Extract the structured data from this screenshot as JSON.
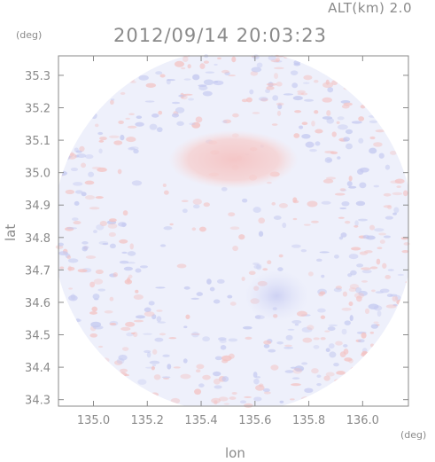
{
  "header": {
    "altitude": "ALT(km) 2.0",
    "timestamp": "2012/09/14 20:03:23"
  },
  "colors": {
    "positive": "#f4c4c4",
    "negative": "#c8ccf2",
    "neutral": "#eef0fb",
    "axis": "#8a8a8a"
  },
  "chart_data": {
    "type": "heatmap",
    "title": "2012/09/14 20:03:23",
    "subtitle": "ALT(km) 2.0",
    "xlabel": "lon",
    "ylabel": "lat",
    "xunit": "(deg)",
    "yunit": "(deg)",
    "xlim": [
      134.87,
      136.17
    ],
    "ylim": [
      34.28,
      35.36
    ],
    "xticks": [
      135.0,
      135.2,
      135.4,
      135.6,
      135.8,
      136.0
    ],
    "xtick_labels": [
      "135.0",
      "135.2",
      "135.4",
      "135.6",
      "135.8",
      "136.0"
    ],
    "yticks": [
      34.3,
      34.4,
      34.5,
      34.6,
      34.7,
      34.8,
      34.9,
      35.0,
      35.1,
      35.2,
      35.3
    ],
    "ytick_labels": [
      "34.3",
      "34.4",
      "34.5",
      "34.6",
      "34.7",
      "34.8",
      "34.9",
      "35.0",
      "35.1",
      "35.2",
      "35.3"
    ],
    "domain": {
      "shape": "circle",
      "center": [
        135.52,
        34.82
      ],
      "radius_lon": 0.67,
      "radius_lat": 0.56
    },
    "features": [
      {
        "kind": "positive",
        "center": [
          135.52,
          35.04
        ],
        "radius": [
          0.24,
          0.09
        ]
      },
      {
        "kind": "negative",
        "center": [
          135.68,
          34.62
        ],
        "radius": [
          0.12,
          0.08
        ]
      }
    ],
    "grid": false
  }
}
